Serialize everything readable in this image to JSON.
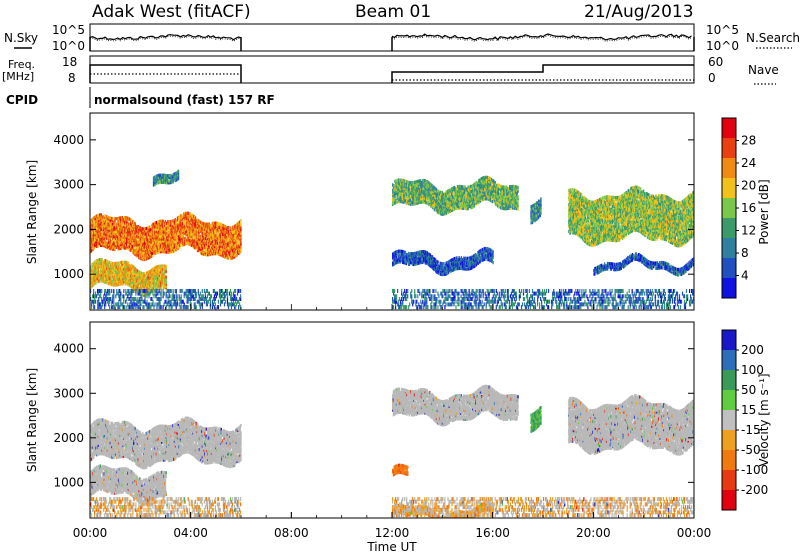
{
  "header": {
    "station": "Adak West (fitACF)",
    "beam": "Beam 01",
    "date": "21/Aug/2013"
  },
  "summary": {
    "nsky_label": "N.Sky",
    "nsearch_label": "N.Search",
    "noise_ticks": [
      "10^5",
      "10^0"
    ],
    "freq_label_line1": "Freq.",
    "freq_label_line2": "[MHz]",
    "freq_ticks": [
      "18",
      "8"
    ],
    "nave_label": "Nave",
    "nave_ticks": [
      "60",
      "0"
    ],
    "cpid_label": "CPID",
    "cpid_text": "normalsound (fast) 157 RF"
  },
  "colors": {
    "power_scale": [
      "#1010e0",
      "#1f4fc0",
      "#2f7f9f",
      "#3a9a6a",
      "#7ac84a",
      "#f2c21a",
      "#f08a10",
      "#e84010",
      "#e00010"
    ],
    "velocity_scale": [
      "#1818c8",
      "#2a6fb8",
      "#3a9a5a",
      "#60cc40",
      "#c0c0c0",
      "#f0a020",
      "#f07a10",
      "#e83a10",
      "#e00010"
    ],
    "ground_scatter": "#b8b8b8"
  },
  "chart_data": [
    {
      "type": "heatmap",
      "name": "power",
      "ylabel": "Slant Range [km]",
      "yticks": [
        "1000",
        "2000",
        "3000",
        "4000"
      ],
      "ylim": [
        200,
        4600
      ],
      "colorbar_label": "Power [dB]",
      "colorbar_ticks": [
        "4",
        "8",
        "12",
        "16",
        "20",
        "24",
        "28"
      ],
      "colorbar_range": [
        0,
        32
      ],
      "bands": [
        {
          "t0": 0.0,
          "t1": 6.0,
          "r0": 1500,
          "r1": 2200,
          "level": 24
        },
        {
          "t0": 0.0,
          "t1": 3.0,
          "r0": 700,
          "r1": 1200,
          "level": 20
        },
        {
          "t0": 2.5,
          "t1": 3.5,
          "r0": 3050,
          "r1": 3250,
          "level": 10
        },
        {
          "t0": 12.0,
          "t1": 17.0,
          "r0": 2500,
          "r1": 3000,
          "level": 14
        },
        {
          "t0": 17.5,
          "t1": 17.9,
          "r0": 2300,
          "r1": 2700,
          "level": 10
        },
        {
          "t0": 19.0,
          "t1": 24.0,
          "r0": 1800,
          "r1": 2800,
          "level": 16
        },
        {
          "t0": 12.0,
          "t1": 16.0,
          "r0": 1150,
          "r1": 1400,
          "level": 6
        },
        {
          "t0": 20.0,
          "t1": 24.0,
          "r0": 1150,
          "r1": 1300,
          "level": 6
        }
      ]
    },
    {
      "type": "heatmap",
      "name": "velocity",
      "ylabel": "Slant Range [km]",
      "yticks": [
        "1000",
        "2000",
        "3000",
        "4000"
      ],
      "ylim": [
        200,
        4600
      ],
      "colorbar_label": "Velocity [m s⁻¹]",
      "colorbar_ticks": [
        "200",
        "100",
        "50",
        "15",
        "-15",
        "-50",
        "-100",
        "-200"
      ],
      "bands": [
        {
          "t0": 0.0,
          "t1": 6.0,
          "r0": 1500,
          "r1": 2300,
          "level": "ground"
        },
        {
          "t0": 0.0,
          "t1": 3.0,
          "r0": 700,
          "r1": 1250,
          "level": "ground"
        },
        {
          "t0": 12.0,
          "t1": 17.0,
          "r0": 2450,
          "r1": 3000,
          "level": "ground"
        },
        {
          "t0": 17.5,
          "t1": 17.9,
          "r0": 2300,
          "r1": 2700,
          "level": 60
        },
        {
          "t0": 19.0,
          "t1": 24.0,
          "r0": 1800,
          "r1": 2800,
          "level": "ground"
        },
        {
          "t0": 12.0,
          "t1": 12.6,
          "r0": 1100,
          "r1": 1300,
          "level": -80
        },
        {
          "t0": 12.0,
          "t1": 16.0,
          "r0": 200,
          "r1": 400,
          "level": -40
        }
      ]
    }
  ],
  "xaxis": {
    "label": "Time UT",
    "ticks": [
      "00:00",
      "04:00",
      "08:00",
      "12:00",
      "16:00",
      "20:00",
      "00:00"
    ],
    "range_hours": [
      0,
      24
    ]
  }
}
